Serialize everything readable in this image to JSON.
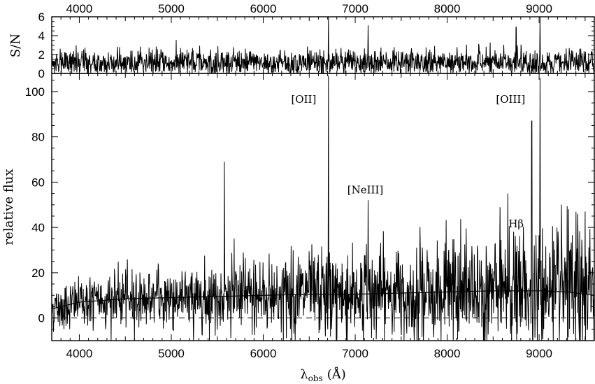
{
  "chart_data": [
    {
      "type": "line",
      "panel": "top",
      "ylabel": "S/N",
      "xlim": [
        3700,
        9600
      ],
      "ylim": [
        0,
        6
      ],
      "yticks": [
        0,
        2,
        4,
        6
      ],
      "xticks": [
        4000,
        5000,
        6000,
        7000,
        8000,
        9000
      ],
      "grid": false,
      "series": [
        {
          "description": "signal-to-noise per pixel, ~0-3 noise with spikes at the strongest lines",
          "spikes": [
            [
              6710,
              6.0
            ],
            [
              7140,
              5.1
            ],
            [
              8750,
              4.9
            ],
            [
              9010,
              6.0
            ]
          ]
        }
      ]
    },
    {
      "type": "line",
      "panel": "bottom",
      "ylabel": "relative flux",
      "xlabel": "λobs (Å)",
      "xlabel_parts": {
        "main": "λ",
        "sub": "obs",
        "unit": "(Å)"
      },
      "xlim": [
        3700,
        9600
      ],
      "ylim": [
        -10,
        108
      ],
      "yticks": [
        0,
        20,
        40,
        60,
        80,
        100
      ],
      "xticks": [
        4000,
        5000,
        6000,
        7000,
        8000,
        9000
      ],
      "grid": false,
      "zero_line": {
        "y": 0,
        "style": "dashed"
      },
      "series": [
        {
          "description": "observed spectrum with noise and emission lines",
          "lines": [
            [
              5577,
              69
            ],
            [
              6710,
              107
            ],
            [
              7140,
              52
            ],
            [
              8660,
              55
            ],
            [
              8920,
              87
            ],
            [
              9010,
              106
            ],
            [
              9320,
              48
            ],
            [
              9420,
              46
            ],
            [
              9500,
              47
            ]
          ]
        },
        {
          "description": "smoothed continuum",
          "x": [
            3700,
            4000,
            4500,
            5000,
            5500,
            6000,
            6500,
            7000,
            7500,
            8000,
            8500,
            9000,
            9300,
            9600
          ],
          "y": [
            4,
            7,
            8.5,
            9,
            9.5,
            10,
            10.5,
            10.5,
            11,
            11.5,
            12,
            12,
            11.5,
            10
          ]
        }
      ],
      "annotations": [
        {
          "text": "[OII]",
          "x": 6440,
          "y": 95
        },
        {
          "text": "[NeIII]",
          "x": 7110,
          "y": 55
        },
        {
          "text": "Hβ",
          "x": 8750,
          "y": 40
        },
        {
          "text": "[OIII]",
          "x": 8690,
          "y": 95
        }
      ]
    }
  ]
}
